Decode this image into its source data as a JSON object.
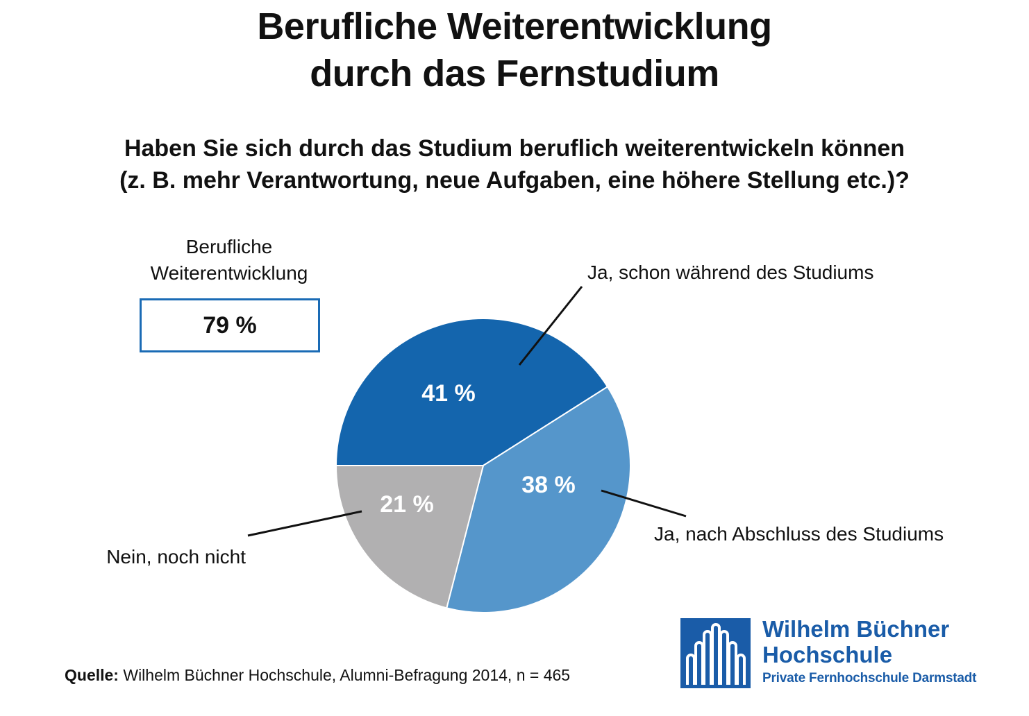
{
  "title": {
    "line1": "Berufliche Weiterentwicklung",
    "line2": "durch das Fernstudium"
  },
  "question": {
    "line1": "Haben Sie sich durch das Studium beruflich weiterentwickeln können",
    "line2": "(z. B. mehr Verantwortung, neue Aufgaben, eine höhere Stellung etc.)?"
  },
  "summary": {
    "label_line1": "Berufliche",
    "label_line2": "Weiterentwicklung",
    "value": "79 %",
    "border_color": "#1a6bb5"
  },
  "chart_data": {
    "type": "pie",
    "start": "9 o'clock",
    "direction": "clockwise",
    "slices": [
      {
        "label": "Ja, schon während des Studiums",
        "value": 41,
        "value_label": "41 %",
        "color": "#1465ad"
      },
      {
        "label": "Ja, nach Abschluss des Studiums",
        "value": 38,
        "value_label": "38 %",
        "color": "#5596cb"
      },
      {
        "label": "Nein, noch nicht",
        "value": 21,
        "value_label": "21 %",
        "color": "#b1b0b1"
      }
    ]
  },
  "footer": {
    "source_label": "Quelle:",
    "source_text": " Wilhelm Büchner Hochschule, Alumni-Befragung 2014, n = 465"
  },
  "logo": {
    "name_line1": "Wilhelm Büchner",
    "name_line2": "Hochschule",
    "subtitle": "Private Fernhochschule Darmstadt",
    "icon": "building-columns-logo-icon",
    "color": "#1a5ca8"
  }
}
